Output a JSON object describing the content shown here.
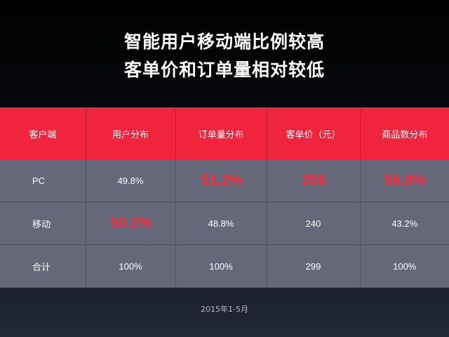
{
  "title": {
    "line1": "智能用户移动端比例较高",
    "line2": "客单价和订单量相对较低"
  },
  "table": {
    "headers": [
      "客户端",
      "用户分布",
      "订单量分布",
      "客单价（元）",
      "商品数分布"
    ],
    "rows": [
      {
        "label": "PC",
        "cells": [
          "49.8%",
          "51.2%",
          "356",
          "56.8%"
        ],
        "highlight": [
          false,
          true,
          true,
          true
        ]
      },
      {
        "label": "移动",
        "cells": [
          "50.2%",
          "48.8%",
          "240",
          "43.2%"
        ],
        "highlight": [
          true,
          false,
          false,
          false
        ]
      },
      {
        "label": "合计",
        "cells": [
          "100%",
          "100%",
          "299",
          "100%"
        ],
        "highlight": [
          false,
          false,
          false,
          false
        ]
      }
    ]
  },
  "footnote": "2015年1-5月",
  "colors": {
    "header_bg": "#f0243c",
    "cell_bg": "#646878",
    "highlight_text": "#ff2a3e",
    "background": "#000000"
  }
}
